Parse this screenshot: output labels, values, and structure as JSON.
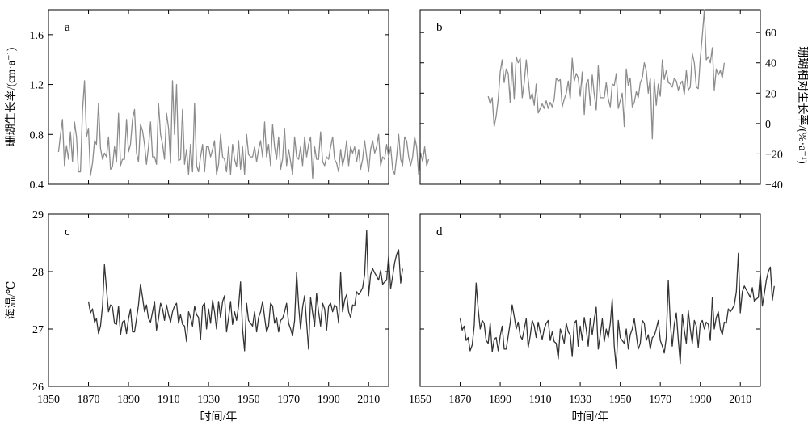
{
  "chart_data": [
    {
      "id": "a",
      "type": "line",
      "panel_label": "a",
      "ylabel": "珊瑚生长率/(cm·a⁻¹)",
      "xlabel": "",
      "xlim": [
        1850,
        2020
      ],
      "ylim": [
        0.4,
        1.8
      ],
      "yticks": [
        0.4,
        0.8,
        1.2,
        1.6
      ],
      "xticks": [
        1850,
        1870,
        1890,
        1910,
        1930,
        1950,
        1970,
        1990,
        2010
      ],
      "show_xtick_labels": false,
      "y_axis_side": "left",
      "grid": false,
      "series": [
        {
          "color": "#8c8c8c",
          "x_start": 1855,
          "values": [
            0.66,
            0.8,
            0.92,
            0.55,
            0.71,
            0.6,
            0.82,
            0.58,
            0.9,
            0.78,
            0.5,
            0.5,
            0.99,
            1.23,
            0.78,
            0.85,
            0.47,
            0.57,
            0.75,
            0.72,
            1.05,
            0.69,
            0.6,
            0.65,
            0.62,
            0.78,
            0.52,
            0.54,
            0.7,
            0.58,
            0.97,
            0.55,
            0.6,
            0.6,
            0.92,
            0.66,
            0.72,
            0.92,
            1.0,
            0.65,
            0.58,
            0.88,
            0.83,
            0.72,
            0.56,
            0.7,
            0.9,
            0.62,
            0.62,
            0.56,
            1.05,
            0.8,
            0.72,
            0.6,
            0.97,
            0.85,
            0.57,
            1.23,
            0.8,
            1.2,
            0.59,
            0.6,
            1.0,
            0.56,
            0.68,
            0.48,
            0.72,
            0.5,
            1.05,
            0.55,
            0.5,
            0.62,
            0.72,
            0.5,
            0.7,
            0.7,
            0.62,
            0.68,
            0.75,
            0.48,
            0.56,
            0.8,
            0.62,
            0.6,
            0.5,
            0.7,
            0.48,
            0.72,
            0.6,
            0.54,
            0.75,
            0.52,
            0.7,
            0.48,
            0.8,
            0.64,
            0.62,
            0.62,
            0.7,
            0.58,
            0.68,
            0.75,
            0.62,
            0.9,
            0.62,
            0.72,
            0.55,
            0.88,
            0.7,
            0.6,
            0.78,
            0.52,
            0.6,
            0.85,
            0.55,
            0.68,
            0.58,
            0.48,
            0.78,
            0.62,
            0.6,
            0.7,
            0.55,
            0.78,
            0.62,
            0.72,
            0.78,
            0.45,
            0.7,
            0.6,
            0.6,
            0.82,
            0.58,
            0.55,
            0.62,
            0.6,
            0.7,
            0.78,
            0.6,
            0.57,
            0.5,
            0.68,
            0.55,
            0.62,
            0.75,
            0.55,
            0.7,
            0.65,
            0.7,
            0.58,
            0.68,
            0.52,
            0.6,
            0.75,
            0.62,
            0.5,
            0.68,
            0.75,
            0.65,
            0.7,
            0.8,
            0.55,
            0.62,
            0.6,
            0.72,
            0.62,
            0.7,
            0.52,
            0.48,
            0.62,
            0.8,
            0.6,
            0.55,
            0.78,
            0.75,
            0.62,
            0.55,
            0.62,
            0.78,
            0.7,
            0.48,
            0.65,
            0.58,
            0.7,
            0.55,
            0.6
          ]
        }
      ]
    },
    {
      "id": "b",
      "type": "line",
      "panel_label": "b",
      "ylabel": "珊瑚相对生长率/(%·a⁻¹)",
      "xlabel": "",
      "xlim": [
        1850,
        2020
      ],
      "ylim": [
        -40,
        75
      ],
      "yticks": [
        -40,
        -20,
        0,
        20,
        40,
        60
      ],
      "xticks": [
        1850,
        1870,
        1890,
        1910,
        1930,
        1950,
        1970,
        1990,
        2010
      ],
      "show_xtick_labels": false,
      "y_axis_side": "right",
      "grid": false,
      "series": [
        {
          "color": "#8c8c8c",
          "x_start": 1884,
          "values": [
            18,
            13,
            17,
            -2,
            5,
            16,
            34,
            42,
            27,
            36,
            33,
            14,
            40,
            16,
            44,
            40,
            43,
            17,
            27,
            42,
            29,
            16,
            20,
            12,
            26,
            7,
            10,
            13,
            10,
            15,
            10,
            14,
            11,
            16,
            30,
            28,
            29,
            11,
            16,
            20,
            28,
            16,
            43,
            28,
            33,
            30,
            18,
            34,
            6,
            26,
            29,
            12,
            32,
            19,
            9,
            38,
            17,
            17,
            17,
            27,
            16,
            11,
            26,
            25,
            33,
            10,
            15,
            20,
            -2,
            36,
            25,
            30,
            11,
            14,
            21,
            17,
            27,
            30,
            40,
            35,
            20,
            30,
            -10,
            29,
            12,
            26,
            18,
            42,
            29,
            35,
            27,
            26,
            24,
            30,
            28,
            22,
            26,
            28,
            19,
            35,
            22,
            24,
            46,
            40,
            24,
            23,
            43,
            58,
            77,
            42,
            44,
            40,
            50,
            22,
            36,
            32,
            35,
            30,
            40
          ]
        }
      ]
    },
    {
      "id": "c",
      "type": "line",
      "panel_label": "c",
      "ylabel": "海温/℃",
      "xlabel": "时间/年",
      "xlim": [
        1850,
        2020
      ],
      "ylim": [
        26,
        29
      ],
      "yticks": [
        26,
        27,
        28,
        29
      ],
      "xticks": [
        1850,
        1870,
        1890,
        1910,
        1930,
        1950,
        1970,
        1990,
        2010
      ],
      "show_xtick_labels": true,
      "y_axis_side": "left",
      "grid": false,
      "series": [
        {
          "color": "#333333",
          "x_start": 1870,
          "values": [
            27.48,
            27.28,
            27.35,
            27.12,
            27.18,
            26.92,
            27.05,
            27.4,
            28.12,
            27.7,
            27.3,
            27.42,
            27.38,
            27.1,
            27.08,
            27.4,
            26.9,
            27.12,
            27.15,
            26.92,
            27.18,
            27.35,
            26.95,
            26.95,
            27.18,
            27.42,
            27.78,
            27.55,
            27.3,
            27.42,
            27.18,
            27.12,
            27.3,
            27.48,
            26.98,
            27.18,
            27.45,
            27.35,
            27.15,
            27.42,
            27.25,
            27.12,
            27.3,
            27.4,
            27.45,
            27.1,
            27.25,
            27.08,
            27.05,
            26.78,
            27.3,
            27.2,
            27.05,
            27.4,
            27.25,
            27.2,
            26.82,
            27.4,
            27.45,
            27.0,
            27.35,
            27.1,
            27.5,
            27.3,
            27.0,
            27.48,
            27.2,
            27.48,
            27.58,
            26.95,
            27.2,
            27.48,
            27.08,
            27.3,
            27.15,
            27.4,
            27.82,
            27.0,
            26.62,
            27.45,
            27.15,
            27.1,
            27.05,
            27.3,
            26.95,
            27.2,
            27.3,
            27.48,
            27.2,
            26.95,
            27.05,
            27.45,
            27.4,
            27.1,
            27.2,
            26.95,
            27.15,
            27.18,
            27.3,
            27.45,
            27.1,
            27.0,
            26.88,
            27.15,
            27.98,
            27.4,
            27.0,
            27.38,
            27.58,
            27.1,
            26.65,
            27.55,
            27.28,
            27.05,
            27.62,
            27.3,
            27.05,
            27.45,
            27.35,
            26.98,
            27.4,
            27.45,
            27.3,
            27.42,
            27.38,
            27.1,
            27.98,
            27.3,
            27.5,
            27.6,
            27.3,
            27.2,
            27.42,
            27.4,
            27.65,
            27.6,
            27.65,
            27.72,
            27.95,
            28.72,
            27.58,
            27.95,
            28.05,
            27.98,
            27.92,
            27.85,
            28.02,
            27.78,
            27.82,
            27.85,
            28.28,
            27.7,
            27.92,
            28.15,
            28.3,
            28.38,
            27.8,
            28.05
          ]
        }
      ]
    },
    {
      "id": "d",
      "type": "line",
      "panel_label": "d",
      "ylabel": "",
      "xlabel": "时间/年",
      "xlim": [
        1850,
        2020
      ],
      "ylim": [
        26,
        29
      ],
      "yticks": [
        26,
        27,
        28,
        29
      ],
      "xticks": [
        1850,
        1870,
        1890,
        1910,
        1930,
        1950,
        1970,
        1990,
        2010
      ],
      "show_xtick_labels": true,
      "y_axis_side": "left",
      "show_ytick_labels": false,
      "grid": false,
      "series": [
        {
          "color": "#333333",
          "x_start": 1870,
          "values": [
            27.18,
            26.98,
            27.05,
            26.8,
            26.85,
            26.62,
            26.72,
            27.05,
            27.8,
            27.35,
            27.0,
            27.15,
            27.1,
            26.8,
            26.75,
            27.1,
            26.6,
            26.82,
            26.85,
            26.62,
            26.88,
            27.05,
            26.65,
            26.65,
            26.88,
            27.1,
            27.42,
            27.22,
            27.0,
            27.12,
            26.88,
            26.82,
            27.0,
            27.18,
            26.68,
            26.88,
            27.15,
            27.05,
            26.85,
            27.12,
            26.95,
            26.82,
            27.0,
            27.1,
            27.15,
            26.8,
            26.95,
            26.78,
            26.75,
            26.48,
            27.0,
            26.9,
            26.75,
            27.1,
            26.95,
            26.9,
            26.52,
            27.1,
            27.15,
            26.7,
            27.05,
            26.8,
            27.2,
            27.0,
            26.7,
            27.18,
            26.9,
            27.18,
            27.38,
            26.65,
            26.9,
            27.18,
            26.78,
            27.0,
            26.85,
            27.1,
            27.52,
            26.7,
            26.32,
            27.15,
            26.85,
            26.8,
            26.75,
            27.0,
            26.65,
            26.9,
            27.0,
            27.18,
            26.9,
            26.65,
            26.75,
            27.15,
            27.1,
            26.8,
            26.9,
            26.65,
            26.85,
            26.88,
            27.0,
            27.15,
            26.8,
            26.7,
            26.58,
            26.85,
            27.85,
            27.1,
            26.7,
            27.08,
            27.28,
            26.8,
            26.4,
            27.25,
            26.98,
            26.75,
            27.32,
            27.0,
            26.75,
            27.15,
            27.05,
            26.68,
            27.1,
            27.15,
            27.0,
            27.12,
            27.08,
            26.8,
            27.55,
            27.0,
            27.2,
            27.3,
            27.0,
            26.9,
            27.12,
            27.1,
            27.35,
            27.3,
            27.35,
            27.42,
            27.65,
            28.32,
            27.28,
            27.65,
            27.75,
            27.68,
            27.62,
            27.55,
            27.72,
            27.48,
            27.52,
            27.55,
            27.98,
            27.4,
            27.62,
            27.85,
            28.0,
            28.08,
            27.5,
            27.75
          ]
        }
      ]
    }
  ]
}
